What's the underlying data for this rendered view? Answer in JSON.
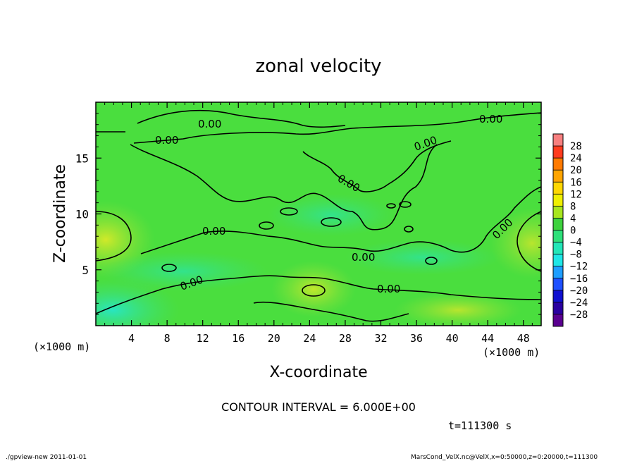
{
  "chart_data": {
    "type": "heatmap",
    "title": "zonal velocity",
    "xlabel": "X-coordinate",
    "ylabel": "Z-coordinate",
    "x_unit": "(×1000 m)",
    "xlim": [
      0,
      50
    ],
    "ylim": [
      0,
      20
    ],
    "x_ticks": [
      4,
      8,
      12,
      16,
      20,
      24,
      28,
      32,
      36,
      40,
      44,
      48
    ],
    "y_ticks": [
      5,
      10,
      15
    ],
    "colorbar": {
      "levels": [
        28,
        24,
        20,
        16,
        12,
        8,
        4,
        0,
        -4,
        -8,
        -12,
        -16,
        -20,
        -24,
        -28
      ],
      "colors": [
        "#f77f7f",
        "#ff3b1e",
        "#ff7a00",
        "#ffa500",
        "#ffd700",
        "#f0f000",
        "#a8e61e",
        "#3ed23e",
        "#2ee07a",
        "#22e6b8",
        "#1ee6e6",
        "#1e9eff",
        "#1e50ff",
        "#1010d0",
        "#2a00a0",
        "#5a0090"
      ]
    },
    "contour_interval_text": "CONTOUR INTERVAL = 6.000E+00",
    "contour_label": "0.00",
    "time_text": "t=111300 s",
    "field_summary": {
      "background_value_range": [
        -2,
        2
      ],
      "positive_regions": [
        {
          "x": [
            0,
            4
          ],
          "z": [
            6,
            11
          ],
          "peak": 8
        },
        {
          "x": [
            21,
            26
          ],
          "z": [
            2,
            5
          ],
          "peak": 6
        },
        {
          "x": [
            44,
            50
          ],
          "z": [
            6,
            10
          ],
          "peak": 6
        }
      ],
      "negative_regions": [
        {
          "x": [
            0,
            6
          ],
          "z": [
            0,
            3
          ],
          "peak": -8
        },
        {
          "x": [
            8,
            16
          ],
          "z": [
            5,
            7
          ],
          "peak": -4
        },
        {
          "x": [
            34,
            40
          ],
          "z": [
            6,
            8
          ],
          "peak": -4
        }
      ]
    }
  },
  "footer": {
    "left": "./gpview-new   2011-01-01",
    "right": "MarsCond_VelX.nc@VelX,x=0:50000,z=0:20000,t=111300"
  }
}
